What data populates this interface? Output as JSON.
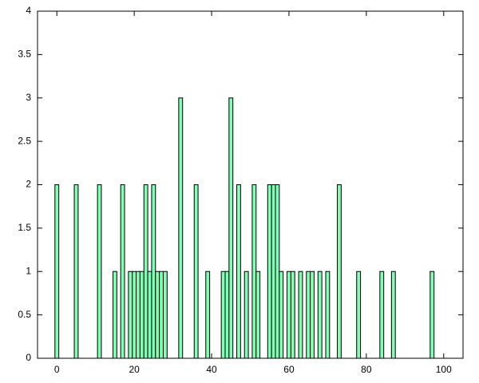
{
  "chart_data": {
    "type": "bar",
    "x": [
      0,
      5,
      11,
      15,
      17,
      19,
      20,
      21,
      22,
      23,
      24,
      25,
      26,
      27,
      28,
      32,
      36,
      39,
      43,
      44,
      45,
      47,
      49,
      51,
      52,
      55,
      56,
      57,
      58,
      60,
      61,
      63,
      65,
      66,
      68,
      70,
      73,
      78,
      84,
      87,
      97
    ],
    "values": [
      2,
      2,
      2,
      1,
      2,
      1,
      1,
      1,
      1,
      2,
      1,
      2,
      1,
      1,
      1,
      3,
      2,
      1,
      1,
      1,
      3,
      2,
      1,
      2,
      1,
      2,
      2,
      2,
      1,
      1,
      1,
      1,
      1,
      1,
      1,
      1,
      2,
      1,
      1,
      1,
      1
    ],
    "color": "#80ffb4",
    "xlim": [
      -5,
      105
    ],
    "xticks": [
      0,
      20,
      40,
      60,
      80,
      100
    ],
    "ylim": [
      0,
      4
    ],
    "yticks": [
      0,
      0.5,
      1,
      1.5,
      2,
      2.5,
      3,
      3.5,
      4
    ],
    "grid": false
  }
}
